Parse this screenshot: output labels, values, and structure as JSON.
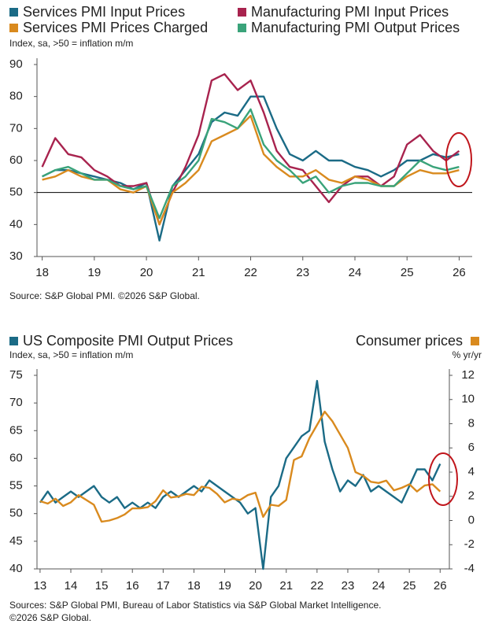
{
  "chart_data": [
    {
      "type": "line",
      "legend": "top",
      "y_label": "Index, sa, >50 = inflation m/m",
      "source": [
        "Source: S&P Global PMI. ©2026 S&P Global."
      ],
      "x": [
        18,
        18.25,
        18.5,
        18.75,
        19,
        19.25,
        19.5,
        19.75,
        20,
        20.25,
        20.5,
        20.75,
        21,
        21.25,
        21.5,
        21.75,
        22,
        22.25,
        22.5,
        22.75,
        23,
        23.25,
        23.5,
        23.75,
        24,
        24.25,
        24.5,
        24.75,
        25,
        25.25,
        25.5,
        25.75,
        26
      ],
      "xlim": [
        17.9,
        26.25
      ],
      "xticks": [
        18,
        19,
        20,
        21,
        22,
        23,
        24,
        25,
        26
      ],
      "ylim": [
        30,
        90
      ],
      "yticks": [
        30,
        40,
        50,
        60,
        70,
        80,
        90
      ],
      "hline": 50,
      "series": [
        {
          "name": "Services PMI Input Prices",
          "color": "#1b6b86",
          "values": [
            55,
            57,
            57,
            56,
            55,
            54,
            53,
            51,
            53,
            35,
            52,
            57,
            62,
            72,
            75,
            74,
            80,
            80,
            70,
            62,
            60,
            63,
            60,
            60,
            58,
            57,
            55,
            57,
            60,
            60,
            62,
            61,
            62
          ]
        },
        {
          "name": "Manufacturing PMI Input Prices",
          "color": "#a8234e",
          "values": [
            58,
            67,
            62,
            61,
            57,
            55,
            52,
            52,
            53,
            40,
            50,
            58,
            68,
            85,
            87,
            82,
            85,
            75,
            63,
            58,
            57,
            52,
            47,
            52,
            55,
            55,
            52,
            55,
            65,
            68,
            63,
            60,
            63
          ]
        },
        {
          "name": "Services PMI Prices Charged",
          "color": "#d98a1e",
          "values": [
            54,
            55,
            57,
            55,
            54,
            54,
            51,
            50,
            52,
            40,
            50,
            53,
            57,
            66,
            68,
            70,
            74,
            62,
            58,
            55,
            55,
            57,
            54,
            53,
            55,
            54,
            52,
            52,
            55,
            57,
            56,
            56,
            57
          ]
        },
        {
          "name": "Manufacturing PMI Output Prices",
          "color": "#3aa37a",
          "values": [
            55,
            57,
            58,
            56,
            54,
            54,
            52,
            51,
            52,
            42,
            52,
            55,
            60,
            73,
            72,
            70,
            76,
            65,
            60,
            57,
            53,
            55,
            50,
            52,
            53,
            53,
            52,
            52,
            56,
            60,
            58,
            57,
            58
          ]
        }
      ]
    },
    {
      "type": "line",
      "legend": "top",
      "y_label": "Index, sa, >50 = inflation m/m",
      "y2_label": "% yr/yr",
      "source": [
        "Sources: S&P Global PMI, Bureau of Labor Statistics via S&P Global Market Intelligence.",
        "©2026 S&P Global."
      ],
      "x": [
        13,
        13.25,
        13.5,
        13.75,
        14,
        14.25,
        14.5,
        14.75,
        15,
        15.25,
        15.5,
        15.75,
        16,
        16.25,
        16.5,
        16.75,
        17,
        17.25,
        17.5,
        17.75,
        18,
        18.25,
        18.5,
        18.75,
        19,
        19.25,
        19.5,
        19.75,
        20,
        20.25,
        20.5,
        20.75,
        21,
        21.25,
        21.5,
        21.75,
        22,
        22.25,
        22.5,
        22.75,
        23,
        23.25,
        23.5,
        23.75,
        24,
        24.25,
        24.5,
        24.75,
        25,
        25.25,
        25.5,
        25.75,
        26
      ],
      "xlim": [
        12.9,
        26.3
      ],
      "xticks": [
        13,
        14,
        15,
        16,
        17,
        18,
        19,
        20,
        21,
        22,
        23,
        24,
        25,
        26
      ],
      "ylim": [
        40,
        75
      ],
      "yticks": [
        40,
        45,
        50,
        55,
        60,
        65,
        70,
        75
      ],
      "y2lim": [
        -4,
        12
      ],
      "y2ticks": [
        -4,
        -2,
        0,
        2,
        4,
        6,
        8,
        10,
        12
      ],
      "series": [
        {
          "name": "US Composite PMI Output Prices",
          "color": "#1b6b86",
          "values": [
            52,
            54,
            52,
            53,
            54,
            53,
            54,
            55,
            53,
            52,
            53,
            51,
            52,
            51,
            52,
            51,
            53,
            54,
            53,
            54,
            55,
            54,
            56,
            55,
            54,
            53,
            52,
            50,
            51,
            40,
            53,
            55,
            60,
            62,
            64,
            65,
            74,
            63,
            58,
            54,
            56,
            55,
            57,
            54,
            55,
            54,
            53,
            52,
            55,
            58,
            58,
            56,
            59
          ]
        },
        {
          "name": "Consumer prices",
          "color": "#d98a1e",
          "axis": "y2",
          "values": [
            1.6,
            1.4,
            1.8,
            1.2,
            1.5,
            2.1,
            1.7,
            1.3,
            -0.1,
            0.0,
            0.2,
            0.5,
            1.0,
            1.0,
            1.1,
            1.6,
            2.5,
            1.9,
            2.0,
            2.2,
            2.1,
            2.8,
            2.7,
            2.2,
            1.5,
            1.8,
            1.7,
            2.1,
            2.3,
            0.3,
            1.3,
            1.2,
            1.7,
            5.0,
            5.3,
            6.8,
            7.9,
            9.0,
            8.2,
            7.1,
            6.0,
            4.0,
            3.7,
            3.2,
            3.1,
            3.3,
            2.5,
            2.7,
            3.0,
            2.4,
            2.9,
            3.0,
            2.4
          ]
        }
      ]
    }
  ]
}
